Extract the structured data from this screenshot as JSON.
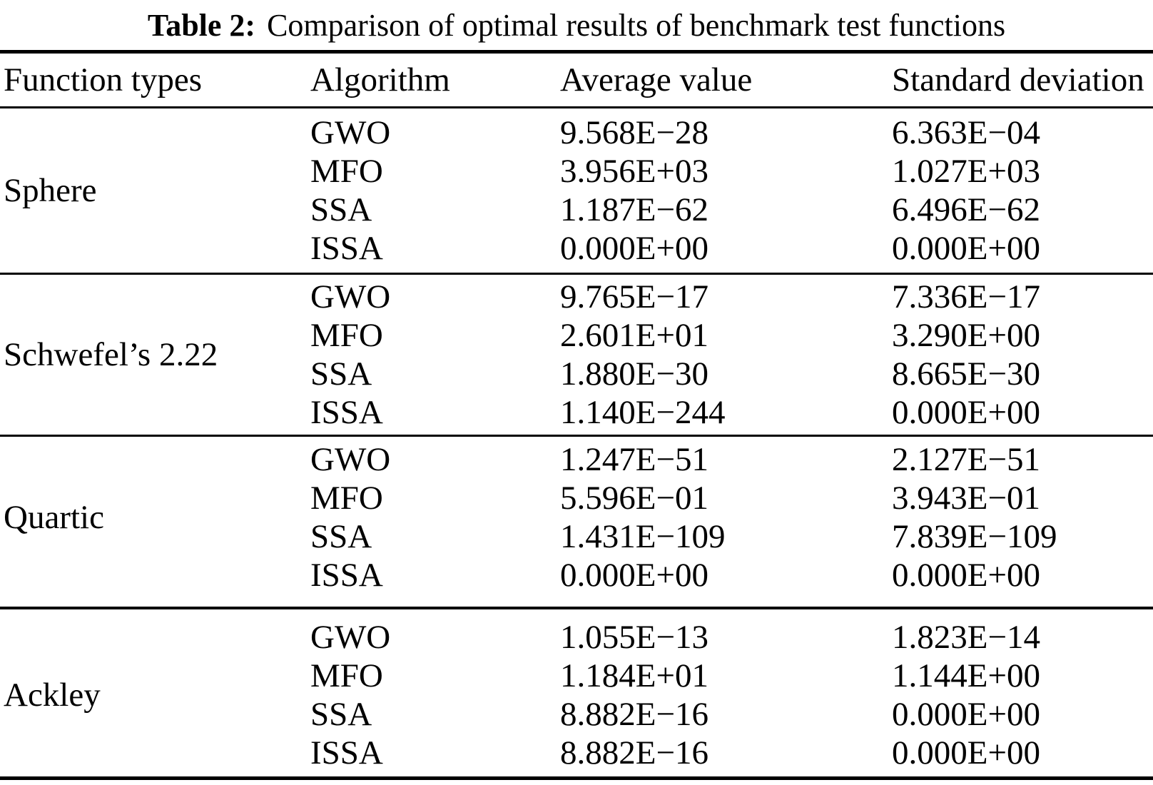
{
  "title": {
    "label": "Table 2:",
    "text": "Comparison of optimal results of benchmark test functions"
  },
  "colors": {
    "text": "#000000",
    "background": "#ffffff",
    "rule": "#000000"
  },
  "table": {
    "headers": [
      "Function types",
      "Algorithm",
      "Average value",
      "Standard deviation"
    ],
    "groups": [
      {
        "function": "Sphere",
        "rows": [
          {
            "algorithm": "GWO",
            "avg": "9.568E−28",
            "std": "6.363E−04"
          },
          {
            "algorithm": "MFO",
            "avg": "3.956E+03",
            "std": "1.027E+03"
          },
          {
            "algorithm": "SSA",
            "avg": "1.187E−62",
            "std": "6.496E−62"
          },
          {
            "algorithm": "ISSA",
            "avg": "0.000E+00",
            "std": "0.000E+00"
          }
        ]
      },
      {
        "function": "Schwefel’s 2.22",
        "rows": [
          {
            "algorithm": "GWO",
            "avg": "9.765E−17",
            "std": "7.336E−17"
          },
          {
            "algorithm": "MFO",
            "avg": "2.601E+01",
            "std": "3.290E+00"
          },
          {
            "algorithm": "SSA",
            "avg": "1.880E−30",
            "std": "8.665E−30"
          },
          {
            "algorithm": "ISSA",
            "avg": "1.140E−244",
            "std": "0.000E+00"
          }
        ]
      },
      {
        "function": "Quartic",
        "rows": [
          {
            "algorithm": "GWO",
            "avg": "1.247E−51",
            "std": "2.127E−51"
          },
          {
            "algorithm": "MFO",
            "avg": "5.596E−01",
            "std": "3.943E−01"
          },
          {
            "algorithm": "SSA",
            "avg": "1.431E−109",
            "std": "7.839E−109"
          },
          {
            "algorithm": "ISSA",
            "avg": "0.000E+00",
            "std": "0.000E+00"
          }
        ]
      },
      {
        "function": "Ackley",
        "rows": [
          {
            "algorithm": "GWO",
            "avg": "1.055E−13",
            "std": "1.823E−14"
          },
          {
            "algorithm": "MFO",
            "avg": "1.184E+01",
            "std": "1.144E+00"
          },
          {
            "algorithm": "SSA",
            "avg": "8.882E−16",
            "std": "0.000E+00"
          },
          {
            "algorithm": "ISSA",
            "avg": "8.882E−16",
            "std": "0.000E+00"
          }
        ]
      }
    ]
  }
}
